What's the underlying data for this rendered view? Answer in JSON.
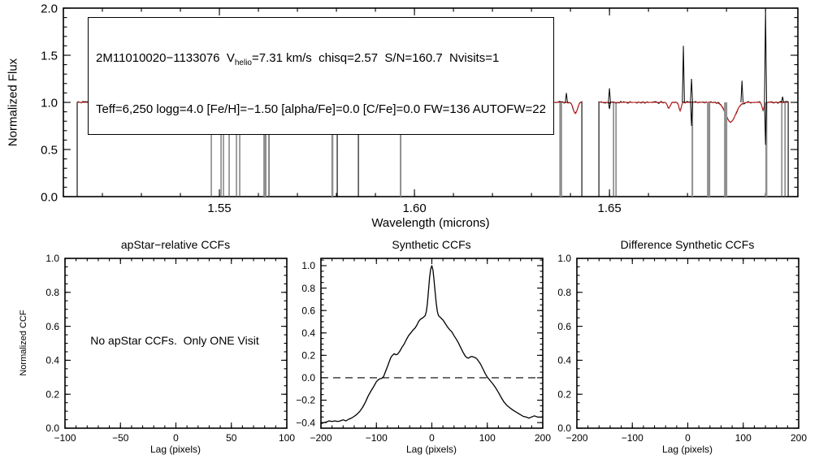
{
  "colors": {
    "spectrum": "#000000",
    "model_fit": "#dd2222",
    "masked_thin": "#606060",
    "masked_wide": "#8f8f8f",
    "axis": "#000000",
    "background": "#ffffff"
  },
  "chart_data": [
    {
      "id": "apvisit-spectrum",
      "type": "line",
      "title": "",
      "xlabel": "Wavelength (microns)",
      "ylabel": "Normalized Flux",
      "xlim": [
        1.51,
        1.6983
      ],
      "ylim": [
        0.0,
        2.0
      ],
      "xticks": {
        "values": [
          1.55,
          1.6,
          1.65
        ],
        "labels": [
          "1.55",
          "1.60",
          "1.65"
        ],
        "minor_step": 0.01
      },
      "yticks": {
        "values": [
          0.0,
          0.5,
          1.0,
          1.5,
          2.0
        ],
        "labels": [
          "0.0",
          "0.5",
          "1.0",
          "1.5",
          "2.0"
        ],
        "minor_step": 0.1
      },
      "annotation": {
        "line1_pre": "2M11010020−1133076  V",
        "line1_sub": "helio",
        "line1_post": "=7.31 km/s  chisq=2.57  S/N=160.7  Nvisits=1",
        "line2": "Teff=6,250 logg=4.0 [Fe/H]=−1.50 [alpha/Fe]=0.0 [C/Fe]=0.0 FW=136 AUTOFW=22"
      },
      "continuum": 1.0,
      "noise_amp": 0.011,
      "segments": [
        [
          1.51354,
          1.58021
        ],
        [
          1.58563,
          1.64292
        ],
        [
          1.64729,
          1.69583
        ]
      ],
      "masked_zero_lines": [
        [
          1.54792,
          1.2
        ],
        [
          1.55042,
          1.2
        ],
        [
          1.55104,
          1.2
        ],
        [
          1.5525,
          1.2
        ],
        [
          1.55438,
          1.2
        ],
        [
          1.55521,
          1.2
        ],
        [
          1.56167,
          4
        ],
        [
          1.56271,
          1.5
        ],
        [
          1.57896,
          2.5
        ],
        [
          1.59646,
          2
        ],
        [
          1.6375,
          3.5
        ],
        [
          1.65104,
          1.2
        ],
        [
          1.65167,
          1.2
        ],
        [
          1.67125,
          2
        ],
        [
          1.67542,
          4
        ],
        [
          1.67979,
          4
        ],
        [
          1.69021,
          2.5
        ],
        [
          1.69417,
          1.2
        ],
        [
          1.695,
          1.2
        ]
      ],
      "emission_spikes": [
        [
          1.51938,
          1.12
        ],
        [
          1.52458,
          1.1
        ],
        [
          1.52938,
          1.12
        ],
        [
          1.53354,
          1.15
        ],
        [
          1.53979,
          1.1
        ],
        [
          1.54375,
          1.13
        ],
        [
          1.59646,
          1.08
        ],
        [
          1.60313,
          1.43
        ],
        [
          1.60792,
          1.26
        ],
        [
          1.61313,
          1.33
        ],
        [
          1.61917,
          1.22
        ],
        [
          1.62354,
          1.32
        ],
        [
          1.635,
          1.22
        ],
        [
          1.63896,
          1.1
        ],
        [
          1.65,
          1.15
        ],
        [
          1.66896,
          1.6
        ],
        [
          1.67104,
          1.25
        ],
        [
          1.68396,
          1.23
        ],
        [
          1.69,
          1.98
        ],
        [
          1.69438,
          1.06
        ]
      ],
      "absorption_spikes": [
        [
          1.51938,
          0.94
        ],
        [
          1.52938,
          0.93
        ],
        [
          1.53354,
          0.92
        ],
        [
          1.60792,
          0.93
        ],
        [
          1.61313,
          0.94
        ],
        [
          1.61917,
          0.93
        ],
        [
          1.62354,
          0.84
        ],
        [
          1.635,
          0.9
        ],
        [
          1.65,
          0.93
        ],
        [
          1.67104,
          0.75
        ],
        [
          1.69,
          0.55
        ]
      ],
      "model_dips": [
        [
          1.53021,
          0.93,
          0.0004
        ],
        [
          1.56667,
          0.95,
          0.0006
        ],
        [
          1.57083,
          0.92,
          0.0005
        ],
        [
          1.57396,
          0.9,
          0.0005
        ],
        [
          1.57667,
          0.86,
          0.0004
        ],
        [
          1.58917,
          0.84,
          0.0004
        ],
        [
          1.60417,
          0.95,
          0.0004
        ],
        [
          1.61146,
          0.93,
          0.0018
        ],
        [
          1.63188,
          0.93,
          0.0005
        ],
        [
          1.64125,
          0.88,
          0.0007
        ],
        [
          1.66521,
          0.94,
          0.0005
        ],
        [
          1.66813,
          0.91,
          0.0004
        ],
        [
          1.68104,
          0.79,
          0.0018
        ],
        [
          1.68938,
          0.92,
          0.0004
        ]
      ]
    },
    {
      "id": "apstar-relative-ccf",
      "type": "empty",
      "title": "apStar−relative CCFs",
      "xlabel": "Lag (pixels)",
      "ylabel": "Normalized CCF",
      "message": "No apStar CCFs.  Only ONE Visit",
      "xlim": [
        -100,
        100
      ],
      "ylim": [
        0.0,
        1.0
      ],
      "xticks": {
        "values": [
          -100,
          -50,
          0,
          50,
          100
        ],
        "labels": [
          "−100",
          "−50",
          "0",
          "50",
          "100"
        ],
        "minor_step": 10
      },
      "yticks": {
        "values": [
          0.0,
          0.2,
          0.4,
          0.6,
          0.8,
          1.0
        ],
        "labels": [
          "0.0",
          "0.2",
          "0.4",
          "0.6",
          "0.8",
          "1.0"
        ],
        "minor_step": 0.05
      }
    },
    {
      "id": "synthetic-ccf",
      "type": "line",
      "title": "Synthetic CCFs",
      "xlabel": "Lag (pixels)",
      "ylabel": "",
      "xlim": [
        -200,
        200
      ],
      "ylim": [
        -0.45,
        1.065
      ],
      "xticks": {
        "values": [
          -200,
          -100,
          0,
          100,
          200
        ],
        "labels": [
          "−200",
          "−100",
          "0",
          "100",
          "200"
        ],
        "minor_step": 20
      },
      "yticks": {
        "values": [
          -0.4,
          -0.2,
          0.0,
          0.2,
          0.4,
          0.6,
          0.8,
          1.0
        ],
        "labels": [
          "−0.4",
          "−0.2",
          "0.0",
          "0.2",
          "0.4",
          "0.6",
          "0.8",
          "1.0"
        ],
        "minor_step": 0.05
      },
      "zero_dashed_line": 0.0,
      "x": [
        -200,
        -195,
        -190,
        -185,
        -180,
        -175,
        -170,
        -165,
        -160,
        -155,
        -150,
        -145,
        -140,
        -135,
        -130,
        -125,
        -120,
        -115,
        -110,
        -105,
        -100,
        -97,
        -94,
        -90,
        -87,
        -84,
        -80,
        -77,
        -74,
        -71,
        -68,
        -65,
        -62,
        -58,
        -54,
        -50,
        -46,
        -42,
        -38,
        -34,
        -30,
        -27,
        -24,
        -21,
        -18,
        -15,
        -12,
        -10,
        -8,
        -6,
        -4,
        -2,
        0,
        2,
        4,
        6,
        8,
        10,
        12,
        15,
        18,
        21,
        24,
        28,
        32,
        36,
        40,
        44,
        48,
        52,
        56,
        60,
        63,
        66,
        69,
        72,
        75,
        78,
        81,
        84,
        88,
        92,
        96,
        100,
        105,
        110,
        115,
        120,
        125,
        130,
        135,
        140,
        145,
        150,
        155,
        160,
        165,
        170,
        175,
        180,
        185,
        190,
        195,
        200
      ],
      "y": [
        -0.41,
        -0.4,
        -0.395,
        -0.385,
        -0.39,
        -0.385,
        -0.39,
        -0.385,
        -0.375,
        -0.385,
        -0.37,
        -0.36,
        -0.345,
        -0.325,
        -0.3,
        -0.265,
        -0.22,
        -0.165,
        -0.12,
        -0.08,
        -0.035,
        -0.02,
        -0.01,
        -0.005,
        0.01,
        0.05,
        0.1,
        0.14,
        0.18,
        0.2,
        0.215,
        0.205,
        0.21,
        0.235,
        0.27,
        0.3,
        0.34,
        0.375,
        0.4,
        0.425,
        0.445,
        0.47,
        0.5,
        0.52,
        0.53,
        0.54,
        0.555,
        0.59,
        0.66,
        0.78,
        0.9,
        0.97,
        1.0,
        0.96,
        0.87,
        0.76,
        0.66,
        0.59,
        0.555,
        0.54,
        0.525,
        0.51,
        0.485,
        0.455,
        0.43,
        0.41,
        0.375,
        0.345,
        0.31,
        0.27,
        0.23,
        0.195,
        0.18,
        0.175,
        0.185,
        0.19,
        0.185,
        0.18,
        0.17,
        0.15,
        0.12,
        0.08,
        0.04,
        0.005,
        -0.025,
        -0.055,
        -0.09,
        -0.13,
        -0.175,
        -0.215,
        -0.245,
        -0.265,
        -0.285,
        -0.3,
        -0.315,
        -0.33,
        -0.345,
        -0.35,
        -0.36,
        -0.35,
        -0.34,
        -0.35,
        -0.352,
        -0.35
      ]
    },
    {
      "id": "difference-synthetic-ccf",
      "type": "empty",
      "title": "Difference Synthetic CCFs",
      "xlabel": "Lag (pixels)",
      "ylabel": "",
      "xlim": [
        -200,
        200
      ],
      "ylim": [
        0.0,
        1.0
      ],
      "xticks": {
        "values": [
          -200,
          -100,
          0,
          100,
          200
        ],
        "labels": [
          "−200",
          "−100",
          "0",
          "100",
          "200"
        ],
        "minor_step": 20
      },
      "yticks": {
        "values": [
          0.0,
          0.2,
          0.4,
          0.6,
          0.8,
          1.0
        ],
        "labels": [
          "0.0",
          "0.2",
          "0.4",
          "0.6",
          "0.8",
          "1.0"
        ],
        "minor_step": 0.05
      }
    }
  ]
}
